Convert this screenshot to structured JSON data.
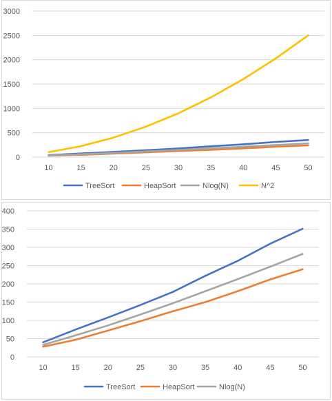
{
  "chart_data": [
    {
      "type": "line",
      "x": [
        10,
        15,
        20,
        25,
        30,
        35,
        40,
        45,
        50
      ],
      "series": [
        {
          "name": "TreeSort",
          "color": "#4472C4",
          "values": [
            40,
            75,
            108,
            142,
            178,
            222,
            263,
            310,
            351
          ]
        },
        {
          "name": "HeapSort",
          "color": "#ED7D31",
          "values": [
            28,
            47,
            72,
            98,
            125,
            150,
            180,
            212,
            240
          ]
        },
        {
          "name": "Nlog(N)",
          "color": "#A5A5A5",
          "values": [
            33,
            59,
            86,
            116,
            147,
            180,
            213,
            247,
            282
          ]
        },
        {
          "name": "N^2",
          "color": "#FFC000",
          "values": [
            100,
            225,
            400,
            625,
            900,
            1225,
            1600,
            2025,
            2500
          ]
        }
      ],
      "ylim": [
        0,
        3000
      ],
      "yticks": [
        0,
        500,
        1000,
        1500,
        2000,
        2500,
        3000
      ],
      "grid": true,
      "legend": "bottom"
    },
    {
      "type": "line",
      "x": [
        10,
        15,
        20,
        25,
        30,
        35,
        40,
        45,
        50
      ],
      "series": [
        {
          "name": "TreeSort",
          "color": "#4472C4",
          "values": [
            40,
            75,
            108,
            142,
            178,
            222,
            263,
            310,
            351
          ]
        },
        {
          "name": "HeapSort",
          "color": "#ED7D31",
          "values": [
            28,
            47,
            72,
            98,
            125,
            150,
            180,
            212,
            240
          ]
        },
        {
          "name": "Nlog(N)",
          "color": "#A5A5A5",
          "values": [
            33,
            59,
            86,
            116,
            147,
            180,
            213,
            247,
            282
          ]
        }
      ],
      "ylim": [
        0,
        400
      ],
      "yticks": [
        0,
        50,
        100,
        150,
        200,
        250,
        300,
        350,
        400
      ],
      "grid": true,
      "legend": "bottom"
    }
  ]
}
